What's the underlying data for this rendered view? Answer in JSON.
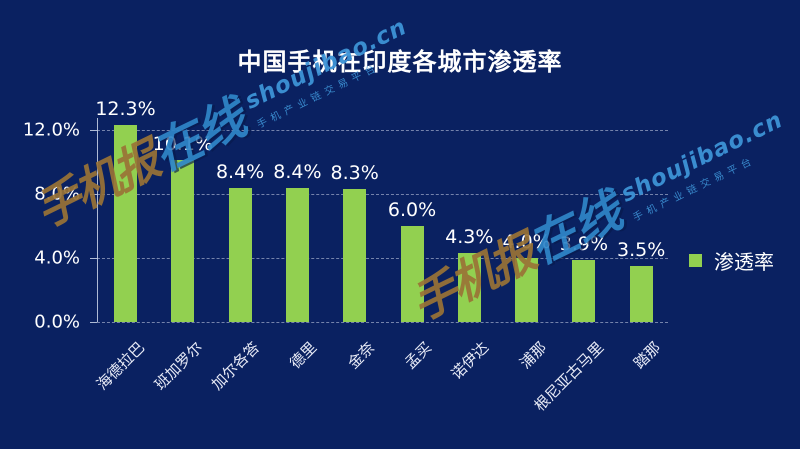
{
  "title": "中国手机在印度各城市渗透率",
  "legend": {
    "label": "渗透率",
    "swatch_color": "#92d050"
  },
  "watermark": {
    "brand_gold": "手机报",
    "brand_blue": "在线",
    "url": "shoujibao.cn",
    "tagline": "手机产业链交易平台",
    "gold_color": "#9a7336",
    "blue_color": "#2f86c9"
  },
  "colors": {
    "background": "#0a2161",
    "bar": "#92d050",
    "grid": "#cdd6ea",
    "text": "#ffffff"
  },
  "chart_data": {
    "type": "bar",
    "title": "中国手机在印度各城市渗透率",
    "categories": [
      "海德拉巴",
      "班加罗尔",
      "加尔各答",
      "德里",
      "金奈",
      "孟买",
      "诺伊达",
      "浦那",
      "根尼亚古马里",
      "踏那"
    ],
    "series": [
      {
        "name": "渗透率",
        "values": [
          12.3,
          10.1,
          8.4,
          8.4,
          8.3,
          6.0,
          4.3,
          4.0,
          3.9,
          3.5
        ]
      }
    ],
    "value_labels": [
      "12.3%",
      "10.1%",
      "8.4%",
      "8.4%",
      "8.3%",
      "6.0%",
      "4.3%",
      "4.0%",
      "3.9%",
      "3.5%"
    ],
    "y_ticks": [
      {
        "label": "0.0%",
        "value": 0
      },
      {
        "label": "4.0%",
        "value": 4
      },
      {
        "label": "8.0%",
        "value": 8
      },
      {
        "label": "12.0%",
        "value": 12
      }
    ],
    "ylim": [
      0,
      12.9
    ],
    "xlabel": "",
    "ylabel": "",
    "grid": true,
    "grid_style": "dashed",
    "legend_position": "right",
    "bar_color": "#92d050",
    "label_rotation_deg": -45
  }
}
